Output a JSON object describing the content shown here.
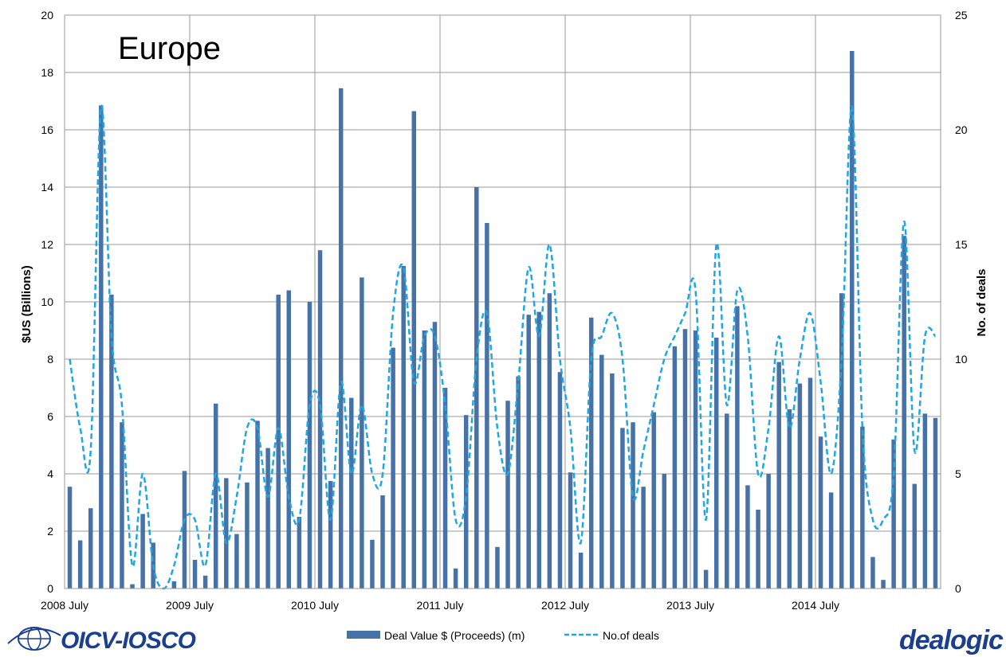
{
  "region_title": "Europe",
  "logos": {
    "left": "OICV-IOSCO",
    "right": "dealogic"
  },
  "colors": {
    "bar": "#4672a8",
    "line": "#1ea7e1",
    "grid": "#9a9a9a",
    "logo": "#1b3f8f"
  },
  "chart_data": {
    "type": "bar",
    "title": "Europe",
    "ylabel": "$US (Billions)",
    "y2label": "No. of deals",
    "ylim": [
      0,
      20
    ],
    "y2lim": [
      0,
      25
    ],
    "yticks": [
      "0",
      "2",
      "4",
      "6",
      "8",
      "10",
      "12",
      "14",
      "16",
      "18",
      "20"
    ],
    "y2ticks": [
      "0",
      "5",
      "10",
      "15",
      "20",
      "25"
    ],
    "xtick_labels": [
      "2008 July",
      "2009 July",
      "2010 July",
      "2011 July",
      "2012 July",
      "2013 July",
      "2014 July"
    ],
    "grid": true,
    "legend_placement": "bottom",
    "series": [
      {
        "name": "Deal Value $ (Proceeds) (m)",
        "type": "bar",
        "axis": "left",
        "values": [
          3.55,
          1.68,
          2.8,
          16.85,
          10.25,
          5.8,
          0.15,
          2.6,
          1.6,
          0,
          0.25,
          4.1,
          1.0,
          0.45,
          6.45,
          3.85,
          1.9,
          3.7,
          5.85,
          4.9,
          10.25,
          10.4,
          2.5,
          10.0,
          11.8,
          3.75,
          17.45,
          6.65,
          10.85,
          1.7,
          3.25,
          8.4,
          11.25,
          16.65,
          9.0,
          9.3,
          7.0,
          0.7,
          6.05,
          14.0,
          12.75,
          1.45,
          6.55,
          7.4,
          9.55,
          9.65,
          10.3,
          7.55,
          4.05,
          1.25,
          9.45,
          8.15,
          7.5,
          5.6,
          5.8,
          3.55,
          6.15,
          4.0,
          8.45,
          9.05,
          9.0,
          0.65,
          8.75,
          6.1,
          9.85,
          3.6,
          2.75,
          4.0,
          7.9,
          6.25,
          7.15,
          7.35,
          5.3,
          3.35,
          10.3,
          18.75,
          5.65,
          1.1,
          0.3,
          5.2,
          12.3,
          3.65,
          6.1,
          5.95
        ]
      },
      {
        "name": "No.of deals",
        "type": "line",
        "axis": "right",
        "values": [
          10,
          7,
          6,
          21,
          11,
          8,
          1,
          5,
          1,
          0,
          1,
          3,
          3,
          1,
          5,
          2,
          4,
          7,
          7,
          4,
          7,
          4,
          3,
          8,
          8,
          3,
          9,
          5,
          8,
          5,
          5,
          12,
          14,
          9,
          11,
          11,
          8,
          3,
          4,
          10,
          12,
          7,
          5,
          9,
          14,
          11,
          15,
          10,
          7,
          2,
          10,
          11,
          12,
          10,
          4,
          6,
          8,
          10,
          11,
          12,
          13,
          3,
          15,
          8,
          13,
          11,
          5,
          7,
          11,
          7,
          10,
          12,
          9,
          5,
          10,
          21,
          7,
          3,
          3,
          5,
          16,
          6,
          11,
          11
        ]
      }
    ]
  }
}
